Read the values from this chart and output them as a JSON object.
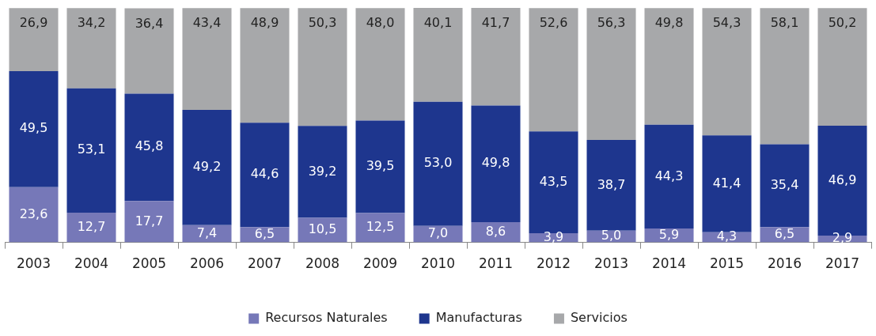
{
  "chart_data": {
    "type": "bar",
    "stacked": true,
    "legend": "bottom",
    "grid": false,
    "tick_labels": "x",
    "categories": [
      "2003",
      "2004",
      "2005",
      "2006",
      "2007",
      "2008",
      "2009",
      "2010",
      "2011",
      "2012",
      "2013",
      "2014",
      "2015",
      "2016",
      "2017"
    ],
    "series": [
      {
        "name": "Recursos Naturales",
        "color": "#7678b8",
        "values": [
          23.6,
          12.7,
          17.7,
          7.4,
          6.5,
          10.5,
          12.5,
          7.0,
          8.6,
          3.9,
          5.0,
          5.9,
          4.3,
          6.5,
          2.9
        ],
        "value_labels": [
          "23,6",
          "12,7",
          "17,7",
          "7,4",
          "6,5",
          "10,5",
          "12,5",
          "7,0",
          "8,6",
          "3,9",
          "5,0",
          "5,9",
          "4,3",
          "6,5",
          "2,9"
        ]
      },
      {
        "name": "Manufacturas",
        "color": "#1e368e",
        "values": [
          49.5,
          53.1,
          45.8,
          49.2,
          44.6,
          39.2,
          39.5,
          53.0,
          49.8,
          43.5,
          38.7,
          44.3,
          41.4,
          35.4,
          46.9
        ],
        "value_labels": [
          "49,5",
          "53,1",
          "45,8",
          "49,2",
          "44,6",
          "39,2",
          "39,5",
          "53,0",
          "49,8",
          "43,5",
          "38,7",
          "44,3",
          "41,4",
          "35,4",
          "46,9"
        ]
      },
      {
        "name": "Servicios",
        "color": "#a7a8aa",
        "values": [
          26.9,
          34.2,
          36.4,
          43.4,
          48.9,
          50.3,
          48.0,
          40.1,
          41.7,
          52.6,
          56.3,
          49.8,
          54.3,
          58.1,
          50.2
        ],
        "value_labels": [
          "26,9",
          "34,2",
          "36,4",
          "43,4",
          "48,9",
          "50,3",
          "48,0",
          "40,1",
          "41,7",
          "52,6",
          "56,3",
          "49,8",
          "54,3",
          "58,1",
          "50,2"
        ]
      }
    ]
  }
}
